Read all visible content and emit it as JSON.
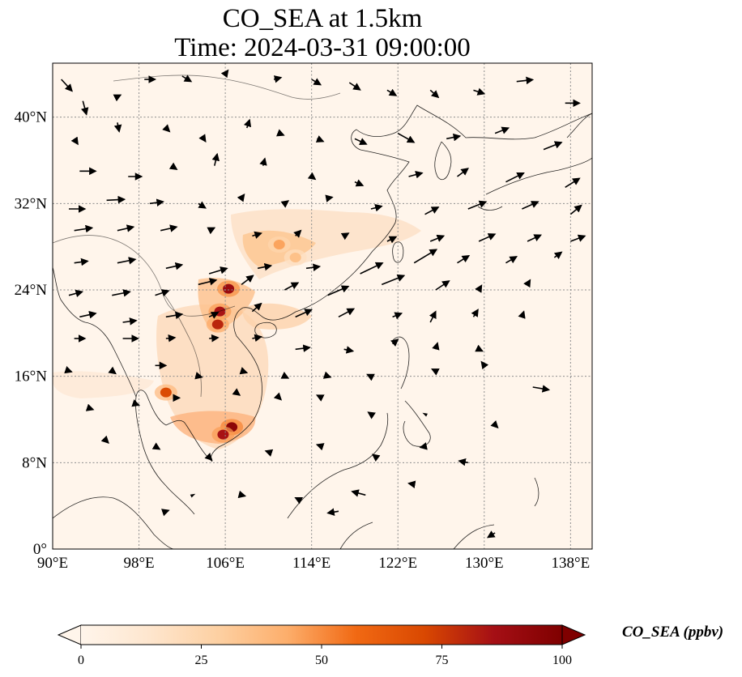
{
  "title": {
    "line1": "CO_SEA at 1.5km",
    "line2": "Time: 2024-03-31 09:00:00"
  },
  "map": {
    "projection": "PlateCarree",
    "lon_range": [
      90,
      140
    ],
    "lat_range": [
      0,
      45
    ],
    "gridlines": "dotted gray",
    "lon_ticks": [
      {
        "value": 90,
        "label": "90°E"
      },
      {
        "value": 98,
        "label": "98°E"
      },
      {
        "value": 106,
        "label": "106°E"
      },
      {
        "value": 114,
        "label": "114°E"
      },
      {
        "value": 122,
        "label": "122°E"
      },
      {
        "value": 130,
        "label": "130°E"
      },
      {
        "value": 138,
        "label": "138°E"
      }
    ],
    "lat_ticks": [
      {
        "value": 0,
        "label": "0°"
      },
      {
        "value": 8,
        "label": "8°N"
      },
      {
        "value": 16,
        "label": "16°N"
      },
      {
        "value": 24,
        "label": "24°N"
      },
      {
        "value": 32,
        "label": "32°N"
      },
      {
        "value": 40,
        "label": "40°N"
      }
    ],
    "background_color": "#fff5eb",
    "co_hotspots": [
      {
        "lon": 106.3,
        "lat": 24.1,
        "value": 90
      },
      {
        "lon": 105.5,
        "lat": 22.0,
        "value": 85
      },
      {
        "lon": 105.3,
        "lat": 20.8,
        "value": 80
      },
      {
        "lon": 106.6,
        "lat": 11.3,
        "value": 95
      },
      {
        "lon": 105.8,
        "lat": 10.6,
        "value": 85
      },
      {
        "lon": 100.5,
        "lat": 14.5,
        "value": 70
      },
      {
        "lon": 111.0,
        "lat": 28.2,
        "value": 45
      },
      {
        "lon": 112.5,
        "lat": 27.0,
        "value": 35
      }
    ],
    "wind_vectors": [
      [
        90.8,
        43.5,
        1.2,
        -1.3
      ],
      [
        92.8,
        41.5,
        0.4,
        -1.5
      ],
      [
        95.8,
        41.8,
        0.6,
        0.3
      ],
      [
        98.5,
        43.5,
        1.2,
        0
      ],
      [
        102.0,
        43.8,
        1.0,
        -0.6
      ],
      [
        106.0,
        44.0,
        0.3,
        0.4
      ],
      [
        110.5,
        43.5,
        0.8,
        0.2
      ],
      [
        114.0,
        43.5,
        1.0,
        -0.6
      ],
      [
        117.5,
        43.2,
        1.2,
        -0.8
      ],
      [
        121.0,
        42.5,
        1.0,
        -0.6
      ],
      [
        125.0,
        42.5,
        0.9,
        -0.8
      ],
      [
        129.0,
        42.5,
        1.2,
        -0.4
      ],
      [
        133.0,
        43.3,
        1.8,
        0.2
      ],
      [
        137.5,
        41.3,
        1.6,
        0
      ],
      [
        92.0,
        38.0,
        0.4,
        -0.6
      ],
      [
        96.0,
        39.5,
        0.2,
        -1.0
      ],
      [
        100.5,
        39.0,
        0.4,
        -0.4
      ],
      [
        104.0,
        38.0,
        0.2,
        -0.3
      ],
      [
        108.0,
        39.0,
        0.3,
        0.9
      ],
      [
        111.0,
        38.5,
        0.5,
        -0.2
      ],
      [
        114.5,
        38.0,
        0.7,
        -0.3
      ],
      [
        118.0,
        38.0,
        1.3,
        -0.6
      ],
      [
        122.0,
        38.5,
        1.8,
        -1.0
      ],
      [
        126.5,
        38.0,
        1.5,
        0.3
      ],
      [
        131.0,
        38.5,
        1.5,
        0.6
      ],
      [
        135.5,
        37.0,
        2.0,
        0.8
      ],
      [
        92.5,
        35.0,
        1.8,
        0
      ],
      [
        97.0,
        34.5,
        1.5,
        0
      ],
      [
        101.0,
        35.5,
        0.6,
        -0.4
      ],
      [
        105.0,
        35.5,
        0.3,
        1.3
      ],
      [
        109.5,
        35.5,
        0.2,
        0.8
      ],
      [
        114.0,
        34.5,
        0.4,
        -0.3
      ],
      [
        118.0,
        34.0,
        0.9,
        -0.4
      ],
      [
        123.0,
        34.5,
        1.5,
        0.4
      ],
      [
        127.5,
        34.5,
        1.2,
        0.9
      ],
      [
        132.0,
        34.0,
        2.0,
        1.0
      ],
      [
        137.5,
        33.5,
        1.6,
        1.0
      ],
      [
        91.5,
        31.5,
        1.8,
        0
      ],
      [
        95.0,
        32.3,
        2.0,
        0.1
      ],
      [
        99.0,
        32.0,
        1.5,
        0.2
      ],
      [
        103.5,
        32.0,
        0.8,
        -0.5
      ],
      [
        107.5,
        32.5,
        0.3,
        0.4
      ],
      [
        111.5,
        32.0,
        0.4,
        0.3
      ],
      [
        115.5,
        32.5,
        0.5,
        0.1
      ],
      [
        119.5,
        31.5,
        1.2,
        0.3
      ],
      [
        124.5,
        31.0,
        1.5,
        0.8
      ],
      [
        128.5,
        31.5,
        2.0,
        0.8
      ],
      [
        133.5,
        31.5,
        1.8,
        0.8
      ],
      [
        138.0,
        31.0,
        1.2,
        1.0
      ],
      [
        92.0,
        29.5,
        2.0,
        0.3
      ],
      [
        96.0,
        29.5,
        1.8,
        0.4
      ],
      [
        100.0,
        29.5,
        1.8,
        0.4
      ],
      [
        104.5,
        29.5,
        0.6,
        0.3
      ],
      [
        108.5,
        29.0,
        1.0,
        0.3
      ],
      [
        112.5,
        29.0,
        0.6,
        0.6
      ],
      [
        117.0,
        29.0,
        0.5,
        0.3
      ],
      [
        121.0,
        28.5,
        1.0,
        0.5
      ],
      [
        125.0,
        28.5,
        1.5,
        0.6
      ],
      [
        129.5,
        28.5,
        1.8,
        0.8
      ],
      [
        134.0,
        28.5,
        1.5,
        0.7
      ],
      [
        138.0,
        28.5,
        1.6,
        0.6
      ],
      [
        92.0,
        26.5,
        1.5,
        0.2
      ],
      [
        96.0,
        26.5,
        2.0,
        0.4
      ],
      [
        100.5,
        26.0,
        1.8,
        0.4
      ],
      [
        104.5,
        25.5,
        2.0,
        0.6
      ],
      [
        109.0,
        26.0,
        1.5,
        0.3
      ],
      [
        113.5,
        26.0,
        1.5,
        0.2
      ],
      [
        118.5,
        25.5,
        2.5,
        1.2
      ],
      [
        123.5,
        26.5,
        2.5,
        1.5
      ],
      [
        127.5,
        26.5,
        1.3,
        0.8
      ],
      [
        132.0,
        26.5,
        1.2,
        0.7
      ],
      [
        136.5,
        27.0,
        0.8,
        0.6
      ],
      [
        91.5,
        23.5,
        1.5,
        0.4
      ],
      [
        95.5,
        23.5,
        2.0,
        0.4
      ],
      [
        99.5,
        23.5,
        1.5,
        0.5
      ],
      [
        103.5,
        24.5,
        2.0,
        0.5
      ],
      [
        107.5,
        24.5,
        1.3,
        1.0
      ],
      [
        111.5,
        24.0,
        1.5,
        0.8
      ],
      [
        115.5,
        23.5,
        2.3,
        1.0
      ],
      [
        120.5,
        24.5,
        2.5,
        1.0
      ],
      [
        125.5,
        24.0,
        1.5,
        1.0
      ],
      [
        129.5,
        24.0,
        0.3,
        0.5
      ],
      [
        134.0,
        24.5,
        0.3,
        0.5
      ],
      [
        92.5,
        21.5,
        1.8,
        0.4
      ],
      [
        96.5,
        21.0,
        1.5,
        0.2
      ],
      [
        100.5,
        21.5,
        1.8,
        0.3
      ],
      [
        104.5,
        21.5,
        1.0,
        0.5
      ],
      [
        108.5,
        22.0,
        1.0,
        0.9
      ],
      [
        112.5,
        21.5,
        1.8,
        0.8
      ],
      [
        116.5,
        21.5,
        1.7,
        0.9
      ],
      [
        121.5,
        21.5,
        1.0,
        0.4
      ],
      [
        125.0,
        21.0,
        0.6,
        1.2
      ],
      [
        129.0,
        21.5,
        0.5,
        0.8
      ],
      [
        133.5,
        21.5,
        0.2,
        0.6
      ],
      [
        92.0,
        19.5,
        1.2,
        0
      ],
      [
        96.5,
        19.5,
        1.7,
        0
      ],
      [
        100.5,
        19.5,
        1.0,
        0.1
      ],
      [
        104.5,
        19.5,
        1.0,
        0.1
      ],
      [
        108.5,
        19.5,
        1.0,
        0.2
      ],
      [
        112.5,
        18.5,
        1.6,
        0.2
      ],
      [
        117.0,
        18.5,
        1.0,
        -0.2
      ],
      [
        121.5,
        19.0,
        0.6,
        0.5
      ],
      [
        125.5,
        18.5,
        0.2,
        0.7
      ],
      [
        129.5,
        18.5,
        0.4,
        -0.2
      ],
      [
        91.5,
        16.5,
        0.3,
        -0.1
      ],
      [
        95.5,
        16.5,
        0.4,
        -0.3
      ],
      [
        99.5,
        17.0,
        1.2,
        0
      ],
      [
        103.5,
        16.0,
        0.4,
        -0.1
      ],
      [
        107.5,
        16.5,
        0.6,
        -0.2
      ],
      [
        111.5,
        16.0,
        0.4,
        -0.2
      ],
      [
        115.5,
        16.0,
        0.3,
        -0.1
      ],
      [
        119.5,
        16.0,
        -0.4,
        0.2
      ],
      [
        125.5,
        16.5,
        -0.4,
        0.2
      ],
      [
        130.0,
        17.0,
        -0.3,
        0.4
      ],
      [
        134.5,
        15.0,
        1.8,
        -0.3
      ],
      [
        93.5,
        13.0,
        0.3,
        -0.1
      ],
      [
        97.5,
        13.5,
        0.6,
        -0.2
      ],
      [
        101.5,
        14.0,
        0.3,
        0
      ],
      [
        107.0,
        14.5,
        0.4,
        -0.3
      ],
      [
        111.0,
        14.0,
        0.2,
        -0.2
      ],
      [
        115.0,
        14.0,
        -0.6,
        0.3
      ],
      [
        119.5,
        12.5,
        -0.3,
        0.2
      ],
      [
        124.5,
        12.5,
        -0.2,
        0.1
      ],
      [
        131.0,
        11.5,
        0.3,
        -0.3
      ],
      [
        95.0,
        10.0,
        0.2,
        -0.2
      ],
      [
        99.5,
        9.5,
        0.5,
        -0.3
      ],
      [
        104.5,
        8.5,
        0.3,
        -0.3
      ],
      [
        110.0,
        9.0,
        -0.3,
        0.1
      ],
      [
        115.0,
        9.5,
        -0.6,
        0.2
      ],
      [
        120.0,
        8.5,
        -0.4,
        0.3
      ],
      [
        124.5,
        9.5,
        -0.5,
        -0.1
      ],
      [
        128.5,
        8.0,
        -1.0,
        0.2
      ],
      [
        103.0,
        5.0,
        0.2,
        0.1
      ],
      [
        107.5,
        5.0,
        0.4,
        -0.1
      ],
      [
        113.0,
        4.5,
        -0.6,
        0.3
      ],
      [
        119.0,
        5.0,
        -1.5,
        0.4
      ],
      [
        123.5,
        6.0,
        -0.6,
        0.1
      ],
      [
        131.0,
        1.5,
        -0.8,
        -0.5
      ],
      [
        116.5,
        3.5,
        -1.2,
        -0.2
      ],
      [
        100.5,
        3.5,
        0.3,
        0.1
      ]
    ]
  },
  "colorbar": {
    "label": "CO_SEA (ppbv)",
    "cmap": "OrRd",
    "min": 0,
    "max": 100,
    "extend": "both",
    "ticks": [
      {
        "value": 0,
        "label": "0"
      },
      {
        "value": 25,
        "label": "25"
      },
      {
        "value": 50,
        "label": "50"
      },
      {
        "value": 75,
        "label": "75"
      },
      {
        "value": 100,
        "label": "100"
      }
    ],
    "stops": [
      "#fff5eb",
      "#fee6ce",
      "#fdd0a2",
      "#fdae6b",
      "#f16913",
      "#d94801",
      "#a50f15",
      "#7f0000"
    ]
  }
}
